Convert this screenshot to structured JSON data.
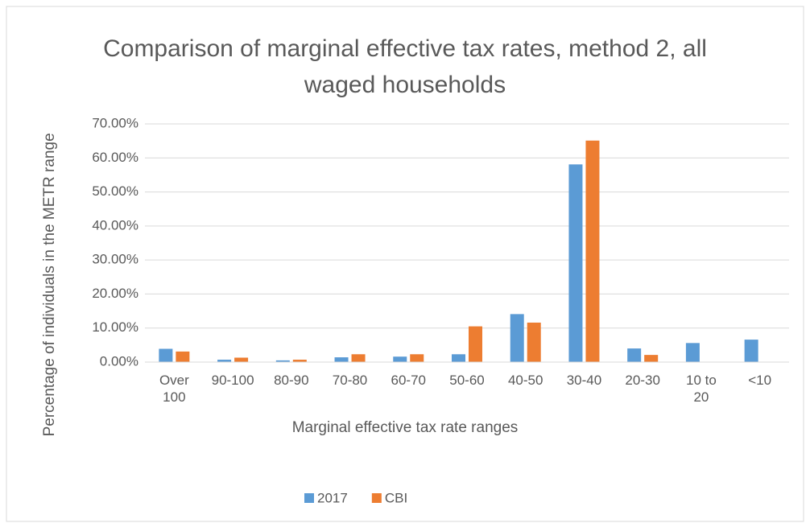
{
  "chart_data": {
    "type": "bar",
    "title": "Comparison of marginal effective tax rates, method 2, all waged households",
    "x_label": "Marginal effective tax rate ranges",
    "y_label": "Percentage of individuals in the METR range",
    "categories": [
      "Over 100",
      "90-100",
      "80-90",
      "70-80",
      "60-70",
      "50-60",
      "40-50",
      "30-40",
      "20-30",
      "10 to 20",
      "<10"
    ],
    "series": [
      {
        "name": "2017",
        "color": "#5b9bd5",
        "values": [
          3.9,
          0.7,
          0.5,
          1.4,
          1.6,
          2.3,
          14.1,
          58.1,
          4.0,
          5.6,
          6.6
        ]
      },
      {
        "name": "CBI",
        "color": "#ed7d31",
        "values": [
          3.1,
          1.3,
          0.7,
          2.3,
          2.3,
          10.5,
          11.6,
          65.1,
          2.1,
          0,
          0
        ]
      }
    ],
    "ylim": [
      0,
      70
    ],
    "yticks": [
      {
        "value": 0,
        "label": "0.00%"
      },
      {
        "value": 10,
        "label": "10.00%"
      },
      {
        "value": 20,
        "label": "20.00%"
      },
      {
        "value": 30,
        "label": "30.00%"
      },
      {
        "value": 40,
        "label": "40.00%"
      },
      {
        "value": 50,
        "label": "50.00%"
      },
      {
        "value": 60,
        "label": "60.00%"
      },
      {
        "value": 70,
        "label": "70.00%"
      }
    ],
    "grid": true,
    "legend": "bottom"
  }
}
